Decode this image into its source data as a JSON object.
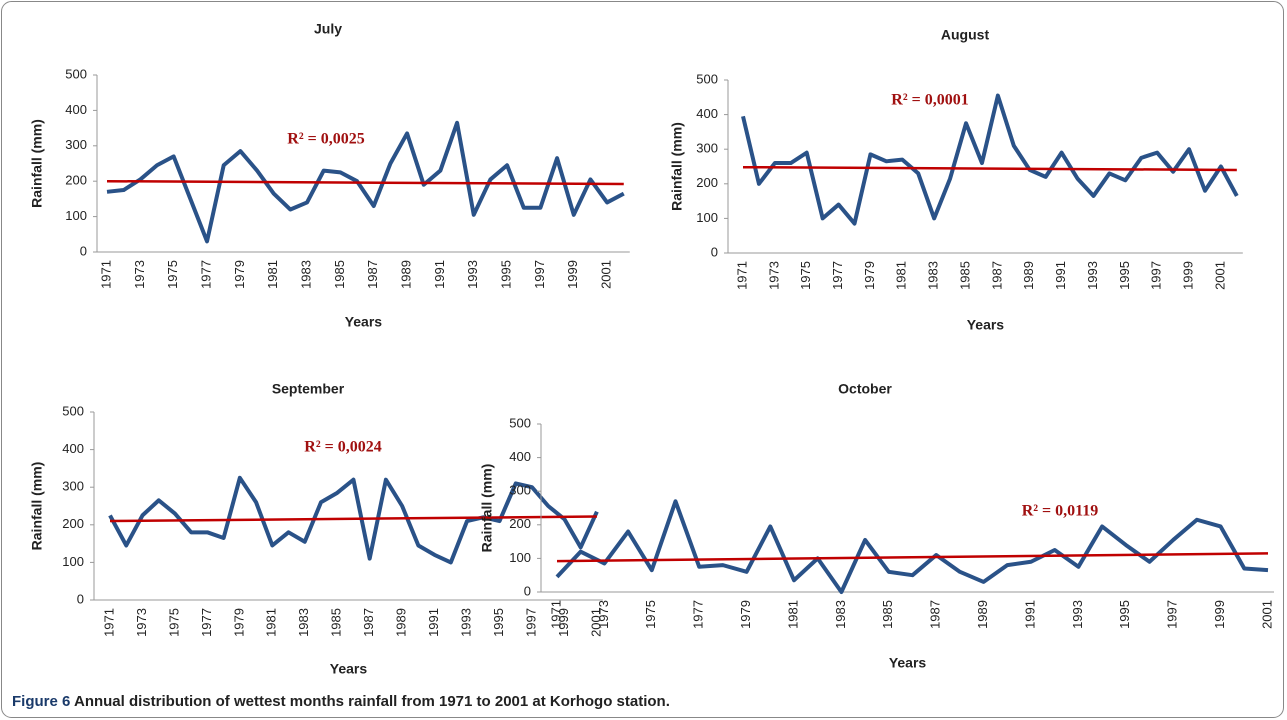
{
  "caption": {
    "label": "Figure 6",
    "text": "Annual distribution of wettest months rainfall from 1971 to 2001 at Korhogo station."
  },
  "chart_data": [
    {
      "type": "line",
      "title": "July",
      "x_label": "Years",
      "y_label": "Rainfall (mm)",
      "annotation": "R² = 0,0025",
      "categories": [
        "1971",
        null,
        "1973",
        null,
        "1975",
        null,
        "1977",
        null,
        "1979",
        null,
        "1981",
        null,
        "1983",
        null,
        "1985",
        null,
        "1987",
        null,
        "1989",
        null,
        "1991",
        null,
        "1993",
        null,
        "1995",
        null,
        "1997",
        null,
        "1999",
        null,
        "2001",
        null
      ],
      "series": [
        {
          "color": "#2a5288",
          "values": [
            170,
            175,
            205,
            245,
            270,
            150,
            30,
            245,
            285,
            230,
            165,
            120,
            140,
            230,
            225,
            200,
            130,
            250,
            335,
            190,
            230,
            365,
            105,
            205,
            245,
            125,
            125,
            265,
            105,
            205,
            140,
            165
          ]
        }
      ],
      "trendline": {
        "color": "#c00000",
        "values": [
          200,
          192
        ]
      },
      "ylim": [
        0,
        500
      ],
      "yticks": [
        0,
        100,
        200,
        300,
        400,
        500
      ]
    },
    {
      "type": "line",
      "title": "August",
      "x_label": "Years",
      "y_label": "Rainfall (mm)",
      "annotation": "R² = 0,0001",
      "categories": [
        "1971",
        null,
        "1973",
        null,
        "1975",
        null,
        "1977",
        null,
        "1979",
        null,
        "1981",
        null,
        "1983",
        null,
        "1985",
        null,
        "1987",
        null,
        "1989",
        null,
        "1991",
        null,
        "1993",
        null,
        "1995",
        null,
        "1997",
        null,
        "1999",
        null,
        "2001",
        null
      ],
      "series": [
        {
          "color": "#2a5288",
          "values": [
            395,
            200,
            260,
            260,
            290,
            100,
            140,
            85,
            285,
            265,
            270,
            230,
            100,
            215,
            375,
            260,
            455,
            310,
            240,
            220,
            290,
            215,
            165,
            230,
            210,
            275,
            290,
            235,
            300,
            180,
            250,
            165
          ]
        }
      ],
      "trendline": {
        "color": "#c00000",
        "values": [
          248,
          240
        ]
      },
      "ylim": [
        0,
        500
      ],
      "yticks": [
        0,
        100,
        200,
        300,
        400,
        500
      ]
    },
    {
      "type": "line",
      "title": "September",
      "x_label": "Years",
      "y_label": "Rainfall (mm)",
      "annotation": "R² = 0,0024",
      "categories": [
        "1971",
        null,
        "1973",
        null,
        "1975",
        null,
        "1977",
        null,
        "1979",
        null,
        "1981",
        null,
        "1983",
        null,
        "1985",
        null,
        "1987",
        null,
        "1989",
        null,
        "1991",
        null,
        "1993",
        null,
        "1995",
        null,
        "1997",
        null,
        "1999",
        null,
        "2001"
      ],
      "series": [
        {
          "color": "#2a5288",
          "values": [
            225,
            145,
            225,
            265,
            230,
            180,
            180,
            165,
            325,
            260,
            145,
            180,
            155,
            260,
            285,
            320,
            110,
            320,
            250,
            145,
            120,
            100,
            210,
            220,
            210,
            310,
            300,
            250,
            215,
            140,
            235
          ]
        }
      ],
      "trendline": {
        "color": "#c00000",
        "values": [
          210,
          222
        ]
      },
      "ylim": [
        0,
        500
      ],
      "yticks": [
        0,
        100,
        200,
        300,
        400,
        500
      ]
    },
    {
      "type": "line",
      "title": "October",
      "x_label": "Years",
      "y_label": "Rainfall (mm)",
      "annotation": "R² = 0,0119",
      "categories": [
        "1971",
        null,
        "1973",
        null,
        "1975",
        null,
        "1977",
        null,
        "1979",
        null,
        "1981",
        null,
        "1983",
        null,
        "1985",
        null,
        "1987",
        null,
        "1989",
        null,
        "1991",
        null,
        "1993",
        null,
        "1995",
        null,
        "1997",
        null,
        "1999",
        null,
        "2001"
      ],
      "series": [
        {
          "color": "#2a5288",
          "values": [
            45,
            120,
            85,
            180,
            65,
            270,
            75,
            80,
            60,
            195,
            35,
            100,
            0,
            155,
            60,
            50,
            110,
            60,
            30,
            80,
            90,
            125,
            75,
            195,
            140,
            90,
            155,
            215,
            195,
            70,
            65
          ]
        }
      ],
      "trendline": {
        "color": "#c00000",
        "values": [
          92,
          115
        ]
      },
      "ylim": [
        0,
        500
      ],
      "yticks": [
        0,
        100,
        200,
        300,
        400,
        500
      ]
    }
  ]
}
